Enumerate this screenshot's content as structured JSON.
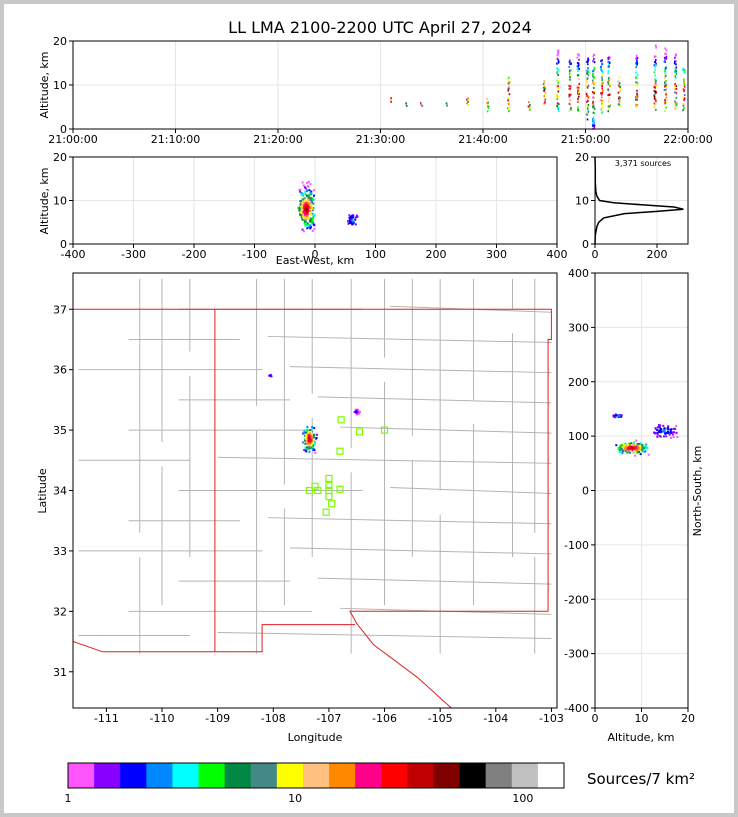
{
  "chart_data": [
    {
      "id": "time_height",
      "type": "scatter",
      "title": "LL LMA 2100-2200 UTC April 27, 2024",
      "ylabel": "Altitude, km",
      "x_ticks": [
        "21:00:00",
        "21:10:00",
        "21:20:00",
        "21:30:00",
        "21:40:00",
        "21:50:00",
        "22:00:00"
      ],
      "xlim_minutes": [
        0,
        60
      ],
      "ylim": [
        0,
        20
      ],
      "y_ticks": [
        0,
        10,
        20
      ],
      "grid": true,
      "activity_columns": [
        {
          "t": 31.0,
          "z": [
            6,
            7
          ]
        },
        {
          "t": 32.5,
          "z": [
            5,
            6
          ]
        },
        {
          "t": 34.0,
          "z": [
            5,
            6
          ]
        },
        {
          "t": 36.5,
          "z": [
            5,
            6
          ]
        },
        {
          "t": 38.5,
          "z": [
            5,
            7
          ]
        },
        {
          "t": 40.5,
          "z": [
            4,
            7
          ]
        },
        {
          "t": 42.5,
          "z": [
            4,
            12
          ]
        },
        {
          "t": 44.5,
          "z": [
            4,
            7
          ]
        },
        {
          "t": 46.0,
          "z": [
            4,
            11
          ]
        },
        {
          "t": 47.3,
          "z": [
            4,
            18
          ]
        },
        {
          "t": 48.5,
          "z": [
            4,
            16
          ]
        },
        {
          "t": 49.3,
          "z": [
            4,
            17
          ]
        },
        {
          "t": 50.2,
          "z": [
            2,
            17
          ]
        },
        {
          "t": 50.8,
          "z": [
            0,
            18
          ]
        },
        {
          "t": 51.6,
          "z": [
            3,
            16
          ]
        },
        {
          "t": 52.3,
          "z": [
            4,
            17
          ]
        },
        {
          "t": 53.3,
          "z": [
            5,
            12
          ]
        },
        {
          "t": 55.0,
          "z": [
            5,
            17
          ]
        },
        {
          "t": 56.8,
          "z": [
            4,
            19
          ]
        },
        {
          "t": 57.8,
          "z": [
            4,
            19
          ]
        },
        {
          "t": 58.8,
          "z": [
            4,
            17
          ]
        },
        {
          "t": 59.6,
          "z": [
            4,
            14
          ]
        }
      ]
    },
    {
      "id": "ew_height",
      "type": "scatter",
      "xlabel": "East-West, km",
      "ylabel": "Altitude, km",
      "xlim": [
        -400,
        400
      ],
      "x_ticks": [
        -400,
        -300,
        -200,
        -100,
        0,
        100,
        200,
        300,
        400
      ],
      "ylim": [
        0,
        20
      ],
      "y_ticks": [
        0,
        10,
        20
      ],
      "clusters": [
        {
          "x": -14,
          "z": 8,
          "sx": 6,
          "sz": 2.5
        },
        {
          "x": 62,
          "z": 5.5,
          "sx": 4,
          "sz": 1
        }
      ]
    },
    {
      "id": "altitude_histogram",
      "type": "line",
      "annotation": "3,371 sources",
      "xlim": [
        0,
        300
      ],
      "x_ticks": [
        0,
        200
      ],
      "ylim": [
        0,
        20
      ],
      "y_ticks": [
        0,
        10,
        20
      ],
      "profile": [
        {
          "z": 0,
          "n": 0
        },
        {
          "z": 2,
          "n": 1
        },
        {
          "z": 4,
          "n": 6
        },
        {
          "z": 5,
          "n": 12
        },
        {
          "z": 6,
          "n": 28
        },
        {
          "z": 7,
          "n": 95
        },
        {
          "z": 7.5,
          "n": 200
        },
        {
          "z": 8,
          "n": 285
        },
        {
          "z": 8.5,
          "n": 255
        },
        {
          "z": 9,
          "n": 150
        },
        {
          "z": 9.5,
          "n": 60
        },
        {
          "z": 10,
          "n": 15
        },
        {
          "z": 11,
          "n": 6
        },
        {
          "z": 12,
          "n": 3
        },
        {
          "z": 14,
          "n": 1
        },
        {
          "z": 17,
          "n": 1
        },
        {
          "z": 20,
          "n": 0
        }
      ]
    },
    {
      "id": "plan_view",
      "type": "scatter",
      "xlabel": "Longitude",
      "ylabel": "Latitude",
      "xlim": [
        -111.6,
        -102.9
      ],
      "x_ticks": [
        -111,
        -110,
        -109,
        -108,
        -107,
        -106,
        -105,
        -104,
        -103
      ],
      "ylim": [
        30.4,
        37.6
      ],
      "y_ticks": [
        31,
        32,
        33,
        34,
        35,
        36,
        37
      ],
      "clusters": [
        {
          "lon": -107.35,
          "lat": 34.85,
          "slon": 0.08,
          "slat": 0.15
        },
        {
          "lon": -106.5,
          "lat": 35.3,
          "slon": 0.04,
          "slat": 0.03
        },
        {
          "lon": -108.05,
          "lat": 35.9,
          "slon": 0.02,
          "slat": 0.02
        }
      ],
      "stations": [
        {
          "lon": -106.78,
          "lat": 35.17
        },
        {
          "lon": -106.45,
          "lat": 34.97
        },
        {
          "lon": -106.0,
          "lat": 35.0
        },
        {
          "lon": -106.8,
          "lat": 34.65
        },
        {
          "lon": -107.0,
          "lat": 34.2
        },
        {
          "lon": -107.0,
          "lat": 34.08
        },
        {
          "lon": -107.25,
          "lat": 34.07
        },
        {
          "lon": -107.35,
          "lat": 34.0
        },
        {
          "lon": -107.2,
          "lat": 34.0
        },
        {
          "lon": -107.0,
          "lat": 34.0
        },
        {
          "lon": -106.8,
          "lat": 34.02
        },
        {
          "lon": -107.0,
          "lat": 33.9
        },
        {
          "lon": -106.95,
          "lat": 33.78
        },
        {
          "lon": -107.05,
          "lat": 33.64
        }
      ]
    },
    {
      "id": "ns_height",
      "type": "scatter",
      "xlabel": "Altitude, km",
      "ylabel": "North-South, km",
      "xlim": [
        0,
        20
      ],
      "x_ticks": [
        0,
        10,
        20
      ],
      "ylim": [
        -400,
        400
      ],
      "y_ticks": [
        -400,
        -300,
        -200,
        -100,
        0,
        100,
        200,
        300,
        400
      ],
      "clusters": [
        {
          "z": 8,
          "y": 78,
          "sz": 2.5,
          "sy": 8
        },
        {
          "z": 15,
          "y": 110,
          "sz": 2,
          "sy": 10
        },
        {
          "z": 5,
          "y": 137,
          "sz": 1,
          "sy": 3
        }
      ]
    }
  ],
  "colorbar": {
    "label": "Sources/7 km²",
    "tick_labels": [
      "1",
      "10",
      "100"
    ],
    "colors": [
      "#ff55ff",
      "#8800ff",
      "#0000ff",
      "#0088ff",
      "#00ffff",
      "#00ff00",
      "#008844",
      "#448888",
      "#ffff00",
      "#ffc080",
      "#ff8800",
      "#ff0088",
      "#ff0000",
      "#c00000",
      "#800000",
      "#000000",
      "#808080",
      "#c0c0c0",
      "#ffffff"
    ]
  },
  "colors": {
    "state_border": "#e02020",
    "county_border": "#b4b4b4",
    "grid": "#e6e6e6",
    "station": "#7cfc00"
  }
}
